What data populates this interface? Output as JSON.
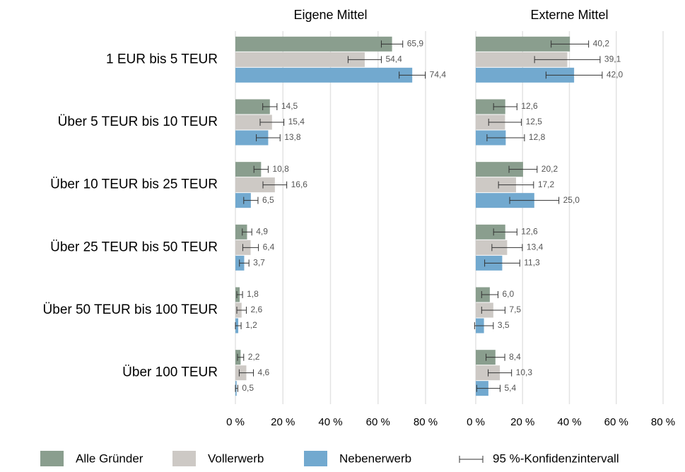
{
  "chart_data": [
    {
      "type": "bar",
      "orientation": "horizontal",
      "title": "Eigene Mittel",
      "categories": [
        "1 EUR bis 5 TEUR",
        "Über 5 TEUR bis 10 TEUR",
        "Über 10 TEUR bis 25 TEUR",
        "Über 25 TEUR bis 50 TEUR",
        "Über 50 TEUR bis 100 TEUR",
        "Über 100 TEUR"
      ],
      "xlim": [
        0,
        80
      ],
      "xticks": [
        {
          "value": 0,
          "label": "0 %"
        },
        {
          "value": 20,
          "label": "20 %"
        },
        {
          "value": 40,
          "label": "40 %"
        },
        {
          "value": 60,
          "label": "60 %"
        },
        {
          "value": 80,
          "label": "80 %"
        }
      ],
      "grid": true,
      "error_bar_label": "95 %-Konfidenzintervall",
      "series": [
        {
          "name": "Alle Gründer",
          "color": "#8a9e8e",
          "values": [
            65.9,
            14.5,
            10.8,
            4.9,
            1.8,
            2.2
          ],
          "value_labels": [
            "65,9",
            "14,5",
            "10,8",
            "4,9",
            "1,8",
            "2,2"
          ],
          "errors": [
            4.5,
            3,
            3,
            2,
            1.2,
            1.3
          ]
        },
        {
          "name": "Vollerwerb",
          "color": "#cdc9c5",
          "values": [
            54.4,
            15.4,
            16.6,
            6.4,
            2.6,
            4.6
          ],
          "value_labels": [
            "54,4",
            "15,4",
            "16,6",
            "6,4",
            "2,6",
            "4,6"
          ],
          "errors": [
            7,
            5,
            5,
            3.3,
            2,
            3
          ]
        },
        {
          "name": "Nebenerwerb",
          "color": "#72a9cf",
          "values": [
            74.4,
            13.8,
            6.5,
            3.7,
            1.2,
            0.5
          ],
          "value_labels": [
            "74,4",
            "13,8",
            "6,5",
            "3,7",
            "1,2",
            "0,5"
          ],
          "errors": [
            5.5,
            5,
            3,
            2,
            1.2,
            0.5
          ]
        }
      ]
    },
    {
      "type": "bar",
      "orientation": "horizontal",
      "title": "Externe Mittel",
      "xlim": [
        0,
        80
      ],
      "xticks": [
        {
          "value": 0,
          "label": "0 %"
        },
        {
          "value": 20,
          "label": "20 %"
        },
        {
          "value": 40,
          "label": "40 %"
        },
        {
          "value": 60,
          "label": "60 %"
        },
        {
          "value": 80,
          "label": "80 %"
        }
      ],
      "grid": true,
      "series": [
        {
          "color": "#8a9e8e",
          "values": [
            40.2,
            12.6,
            20.2,
            12.6,
            6.0,
            8.4
          ],
          "value_labels": [
            "40,2",
            "12,6",
            "20,2",
            "12,6",
            "6,0",
            "8,4"
          ],
          "errors": [
            8,
            5,
            6,
            5,
            3.5,
            4
          ]
        },
        {
          "color": "#cdc9c5",
          "values": [
            39.1,
            12.5,
            17.2,
            13.4,
            7.5,
            10.3
          ],
          "value_labels": [
            "39,1",
            "12,5",
            "17,2",
            "13,4",
            "7,5",
            "10,3"
          ],
          "errors": [
            14,
            7,
            7.5,
            6.5,
            5,
            5
          ]
        },
        {
          "color": "#72a9cf",
          "values": [
            42.0,
            12.8,
            25.0,
            11.3,
            3.5,
            5.4
          ],
          "value_labels": [
            "42,0",
            "12,8",
            "25,0",
            "11,3",
            "3,5",
            "5,4"
          ],
          "errors": [
            12,
            8,
            10.5,
            7.5,
            4,
            5
          ]
        }
      ]
    }
  ]
}
